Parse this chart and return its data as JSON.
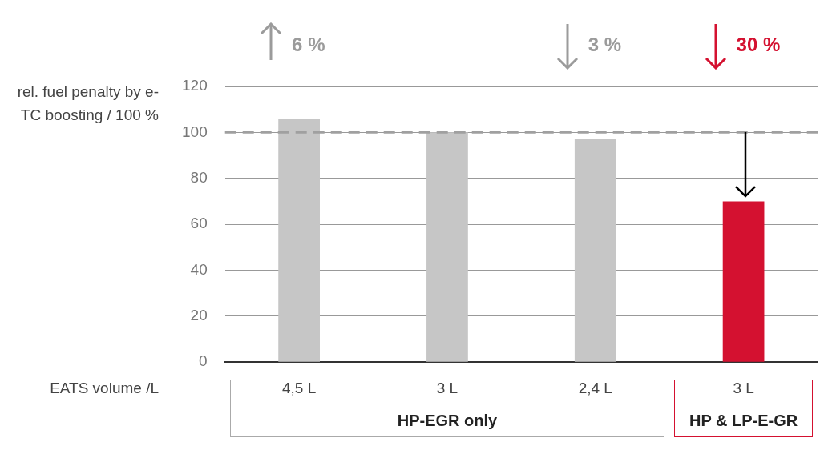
{
  "chart_data": {
    "type": "bar",
    "xlabel": "EATS volume /L",
    "ylabel": "rel. fuel penalty by e-TC boosting / 100 %",
    "categories": [
      "4,5 L",
      "3 L",
      "2,4 L",
      "3 L"
    ],
    "values": [
      106,
      100,
      97,
      70
    ],
    "colors": [
      "#c6c6c6",
      "#c6c6c6",
      "#c6c6c6",
      "#d41130"
    ],
    "ylim": [
      0,
      120
    ],
    "yticks": [
      0,
      20,
      40,
      60,
      80,
      100,
      120
    ],
    "grid": "y",
    "legend": false,
    "ref_lines": [
      {
        "axis": "y",
        "value": 100,
        "color": "#a0a0a0",
        "line_style": "dashed"
      }
    ],
    "annotations": [
      "6 %",
      "3 %",
      "30 %",
      "HP-EGR only",
      "HP & LP-E-GR"
    ]
  }
}
